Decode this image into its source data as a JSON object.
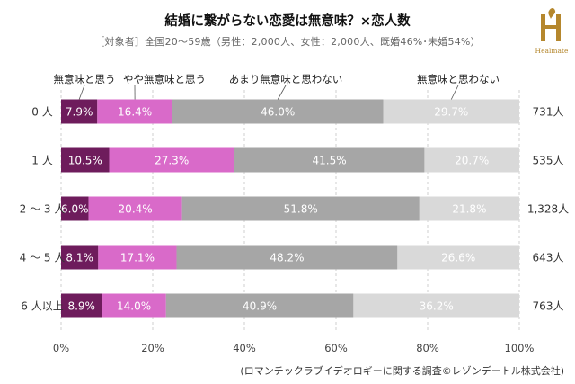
{
  "header": {
    "title": "結婚に繋がらない恋愛は無意味？×恋人数",
    "subtitle": "［対象者］全国20〜59歳（男性：2,000人、女性：2,000人、既婚46%･未婚54%）",
    "logo_text": "Healmate",
    "logo_color": "#b5872d"
  },
  "footnote": "(ロマンチックラブイデオロギーに関する調査©レゾンデートル株式会社)",
  "chart_data": {
    "type": "bar",
    "orientation": "horizontal",
    "stacked": true,
    "categories": [
      "0人",
      "1人",
      "2〜3人",
      "4〜5人",
      "6人以上"
    ],
    "category_labels": [
      "0 人",
      "1 人",
      "2 〜 3 人",
      "4 〜 5 人",
      "6 人以上"
    ],
    "series": [
      {
        "name": "無意味と思う",
        "color": "#6e1c5c",
        "label_color": "#ffffff",
        "values": [
          7.9,
          10.5,
          6.0,
          8.1,
          8.9
        ]
      },
      {
        "name": "やや無意味と思う",
        "color": "#d96ac9",
        "label_color": "#ffffff",
        "values": [
          16.4,
          27.3,
          20.4,
          17.1,
          14.0
        ]
      },
      {
        "name": "あまり無意味と思わない",
        "color": "#a6a6a6",
        "label_color": "#ffffff",
        "values": [
          46.0,
          41.5,
          51.8,
          48.2,
          40.9
        ]
      },
      {
        "name": "無意味と思わない",
        "color": "#d9d9d9",
        "label_color": "#ffffff",
        "values": [
          29.7,
          20.7,
          21.8,
          26.6,
          36.2
        ]
      }
    ],
    "totals": [
      "731人",
      "535人",
      "1,328人",
      "643人",
      "763人"
    ],
    "xlim": [
      0,
      100
    ],
    "x_ticks": [
      "0%",
      "20%",
      "40%",
      "60%",
      "80%",
      "100%"
    ],
    "legend_placement": "top, labels above bars with leader lines",
    "grid": "vertical gridlines, dashed"
  }
}
